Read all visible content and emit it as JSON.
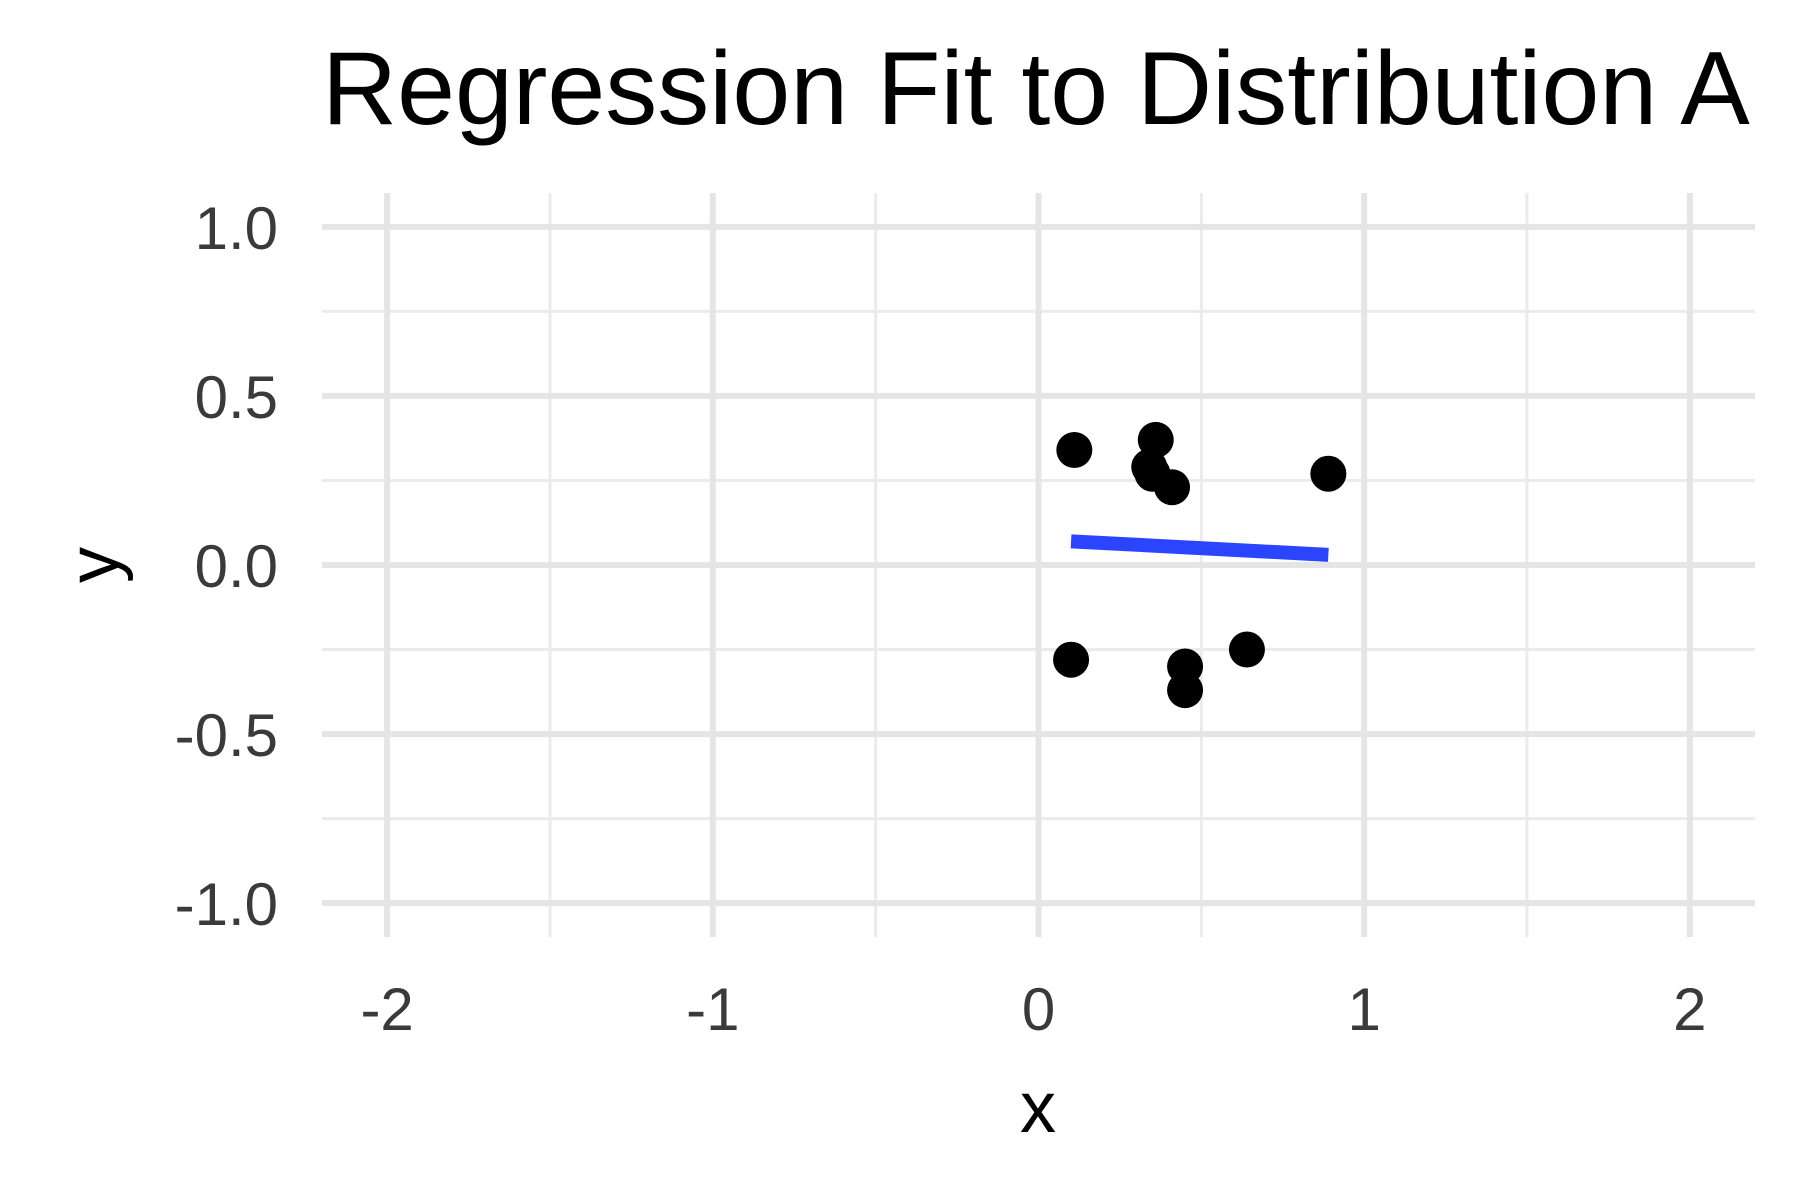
{
  "chart_data": {
    "type": "scatter",
    "title": "Regression Fit to Distribution A",
    "xlabel": "x",
    "ylabel": "y",
    "xlim": [
      -2.2,
      2.2
    ],
    "ylim": [
      -1.1,
      1.1
    ],
    "x_ticks": [
      -2,
      -1,
      0,
      1,
      2
    ],
    "x_tick_labels": [
      "-2",
      "-1",
      "0",
      "1",
      "2"
    ],
    "y_ticks": [
      -1.0,
      -0.5,
      0.0,
      0.5,
      1.0
    ],
    "y_tick_labels": [
      "-1.0",
      "-0.5",
      "0.0",
      "0.5",
      "1.0"
    ],
    "grid": true,
    "series": [
      {
        "kind": "points",
        "x": [
          0.11,
          0.1,
          0.36,
          0.34,
          0.35,
          0.41,
          0.45,
          0.45,
          0.64,
          0.89
        ],
        "y": [
          0.34,
          -0.28,
          0.37,
          0.29,
          0.27,
          0.23,
          -0.3,
          -0.37,
          -0.25,
          0.27
        ]
      },
      {
        "kind": "fit-line",
        "x": [
          0.1,
          0.89
        ],
        "y": [
          0.07,
          0.03
        ]
      }
    ],
    "colors": {
      "points": "#000000",
      "fit_line": "#2B45FF",
      "grid_major": "#E5E5E5",
      "grid_minor": "#EBEBEB"
    }
  }
}
